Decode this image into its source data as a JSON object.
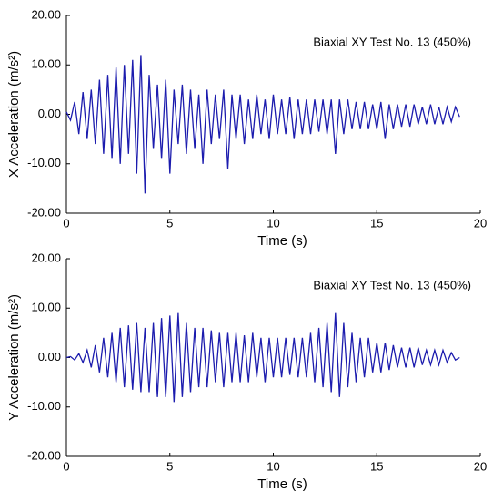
{
  "chart_data": [
    {
      "type": "line",
      "annotation": "Biaxial XY Test No. 13 (450%)",
      "x_label": "Time  (s)",
      "y_label": "X Acceleration (m/s²)",
      "color": "#1c1cae",
      "xlim": [
        0,
        20
      ],
      "xticks": [
        0,
        5,
        10,
        15,
        20
      ],
      "ylim": [
        -20,
        20
      ],
      "yticks": [
        {
          "value": -20,
          "label": "-20.00"
        },
        {
          "value": -10,
          "label": "-10.00"
        },
        {
          "value": 0,
          "label": "0.00"
        },
        {
          "value": 10,
          "label": "10.00"
        },
        {
          "value": 20,
          "label": "20.00"
        }
      ],
      "x": [
        0,
        0.2,
        0.4,
        0.6,
        0.8,
        1,
        1.2,
        1.4,
        1.6,
        1.8,
        2,
        2.2,
        2.4,
        2.6,
        2.8,
        3,
        3.2,
        3.4,
        3.6,
        3.8,
        4,
        4.2,
        4.4,
        4.6,
        4.8,
        5,
        5.2,
        5.4,
        5.6,
        5.8,
        6,
        6.2,
        6.4,
        6.6,
        6.8,
        7,
        7.2,
        7.4,
        7.6,
        7.8,
        8,
        8.2,
        8.4,
        8.6,
        8.8,
        9,
        9.2,
        9.4,
        9.6,
        9.8,
        10,
        10.2,
        10.4,
        10.6,
        10.8,
        11,
        11.2,
        11.4,
        11.6,
        11.8,
        12,
        12.2,
        12.4,
        12.6,
        12.8,
        13,
        13.2,
        13.4,
        13.6,
        13.8,
        14,
        14.2,
        14.4,
        14.6,
        14.8,
        15,
        15.2,
        15.4,
        15.6,
        15.8,
        16,
        16.2,
        16.4,
        16.6,
        16.8,
        17,
        17.2,
        17.4,
        17.6,
        17.8,
        18,
        18.2,
        18.4,
        18.6,
        18.8,
        19
      ],
      "values": [
        0.5,
        -1.2,
        2.5,
        -4,
        4.5,
        -5,
        5,
        -6,
        7,
        -8,
        8,
        -9,
        9.5,
        -10,
        10,
        -8,
        11,
        -12,
        12,
        -16,
        8,
        -7,
        6,
        -9,
        7,
        -12,
        5,
        -6,
        6,
        -8,
        5,
        -7,
        4,
        -10,
        5,
        -6,
        4,
        -5,
        5,
        -11,
        4,
        -5,
        4,
        -6,
        3,
        -5,
        4,
        -4,
        3,
        -5,
        4,
        -4,
        3,
        -4,
        3.5,
        -5,
        3,
        -4,
        3,
        -4,
        3,
        -3.5,
        3,
        -4,
        3,
        -8,
        3,
        -4,
        3,
        -3,
        2.5,
        -3,
        2.5,
        -3,
        2,
        -3,
        2.5,
        -5,
        2,
        -3,
        2,
        -2.5,
        2,
        -2.5,
        2,
        -2,
        1.5,
        -2,
        2,
        -2,
        1.5,
        -2,
        1.5,
        -1.5,
        1.5,
        -0.5
      ]
    },
    {
      "type": "line",
      "annotation": "Biaxial XY Test No. 13 (450%)",
      "x_label": "Time  (s)",
      "y_label": "Y Acceleration (m/s²)",
      "color": "#1c1cae",
      "xlim": [
        0,
        20
      ],
      "xticks": [
        0,
        5,
        10,
        15,
        20
      ],
      "ylim": [
        -20,
        20
      ],
      "yticks": [
        {
          "value": -20,
          "label": "-20.00"
        },
        {
          "value": -10,
          "label": "-10.00"
        },
        {
          "value": 0,
          "label": "0.00"
        },
        {
          "value": 10,
          "label": "10.00"
        },
        {
          "value": 20,
          "label": "20.00"
        }
      ],
      "x": [
        0,
        0.2,
        0.4,
        0.6,
        0.8,
        1,
        1.2,
        1.4,
        1.6,
        1.8,
        2,
        2.2,
        2.4,
        2.6,
        2.8,
        3,
        3.2,
        3.4,
        3.6,
        3.8,
        4,
        4.2,
        4.4,
        4.6,
        4.8,
        5,
        5.2,
        5.4,
        5.6,
        5.8,
        6,
        6.2,
        6.4,
        6.6,
        6.8,
        7,
        7.2,
        7.4,
        7.6,
        7.8,
        8,
        8.2,
        8.4,
        8.6,
        8.8,
        9,
        9.2,
        9.4,
        9.6,
        9.8,
        10,
        10.2,
        10.4,
        10.6,
        10.8,
        11,
        11.2,
        11.4,
        11.6,
        11.8,
        12,
        12.2,
        12.4,
        12.6,
        12.8,
        13,
        13.2,
        13.4,
        13.6,
        13.8,
        14,
        14.2,
        14.4,
        14.6,
        14.8,
        15,
        15.2,
        15.4,
        15.6,
        15.8,
        16,
        16.2,
        16.4,
        16.6,
        16.8,
        17,
        17.2,
        17.4,
        17.6,
        17.8,
        18,
        18.2,
        18.4,
        18.6,
        18.8,
        19
      ],
      "values": [
        0,
        0.2,
        -0.5,
        0.8,
        -1,
        1.5,
        -2,
        2.5,
        -3,
        4,
        -4,
        5,
        -5,
        6,
        -6,
        6.5,
        -6.5,
        7,
        -7,
        6,
        -7,
        7,
        -8,
        8,
        -8,
        8.5,
        -9,
        9,
        -8,
        7,
        -7,
        6,
        -6,
        6,
        -6,
        5.5,
        -5,
        5,
        -6,
        5,
        -5,
        5,
        -5,
        4.5,
        -5,
        5,
        -4,
        4,
        -5,
        4,
        -4,
        4,
        -4,
        4,
        -3.5,
        4,
        -4,
        4,
        -4,
        5,
        -5,
        6,
        -6,
        7,
        -7,
        9,
        -8,
        7,
        -6,
        5,
        -5,
        4,
        -4,
        4,
        -3,
        3,
        -3,
        3,
        -2.5,
        2.5,
        -2,
        2,
        -2,
        2,
        -2,
        2,
        -1.5,
        1.5,
        -1.5,
        1.5,
        -1.5,
        1.5,
        -1,
        1,
        -0.5,
        0
      ]
    }
  ]
}
